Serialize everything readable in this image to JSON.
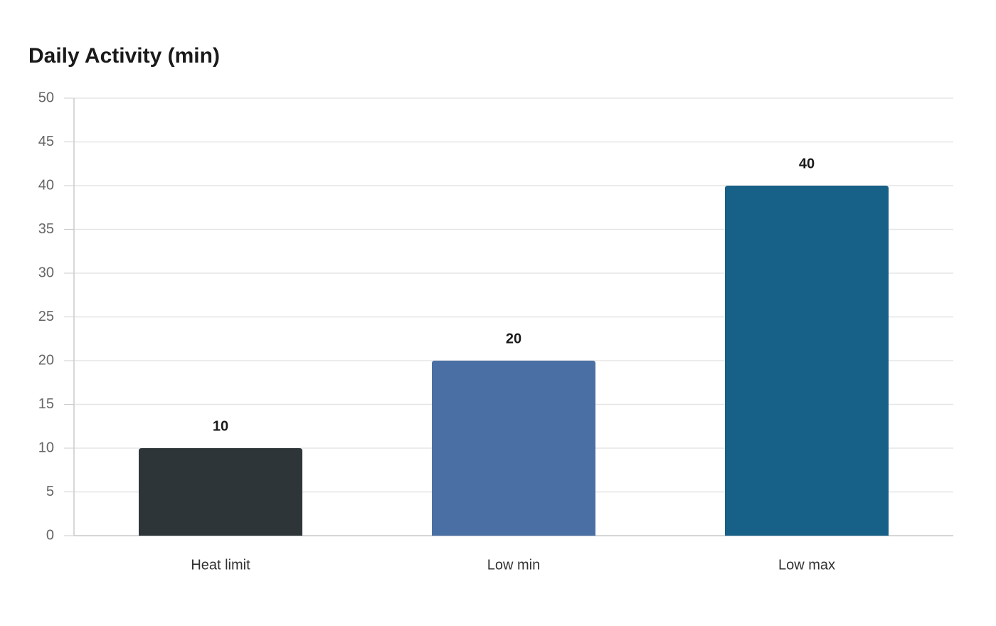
{
  "chart_data": {
    "type": "bar",
    "title": "Daily Activity (min)",
    "categories": [
      "Heat limit",
      "Low min",
      "Low max"
    ],
    "values": [
      10,
      20,
      40
    ],
    "colors": [
      "#2e3538",
      "#4a6fa5",
      "#176087"
    ],
    "ylim": [
      0,
      50
    ],
    "yticks": [
      0,
      5,
      10,
      15,
      20,
      25,
      30,
      35,
      40,
      45,
      50
    ],
    "grid": true
  }
}
